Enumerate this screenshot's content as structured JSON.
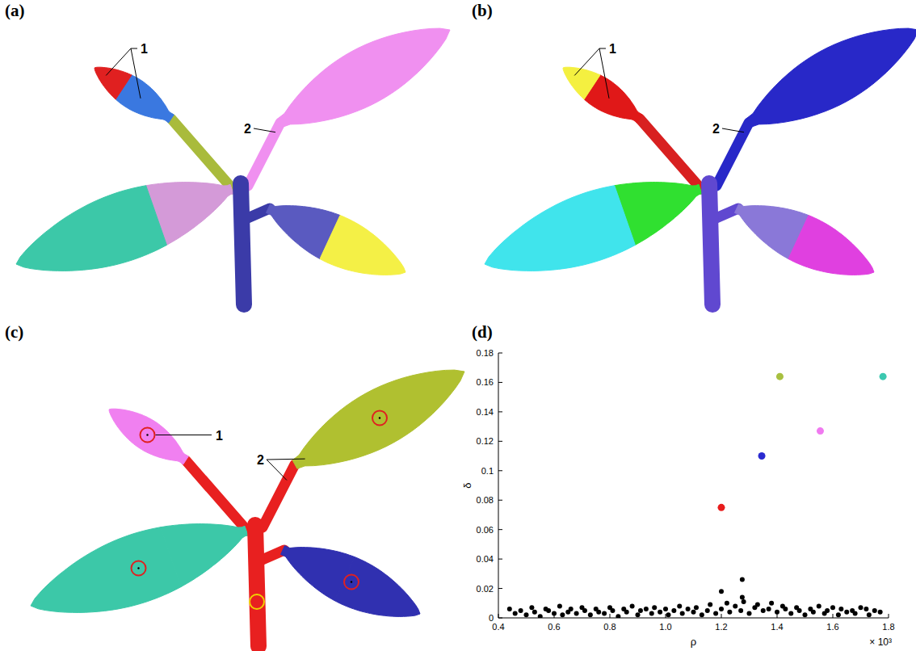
{
  "panels": [
    {
      "letter": "(a)",
      "labels": [
        "1",
        "2"
      ],
      "parts": {
        "stem": "#3b3ba8",
        "tl_pet": "#a9bb3c",
        "tl_base": "#3a78e0",
        "tl_tip": "#e02020",
        "tr_pet": "#f090f0",
        "tr_blade": "#f090f0",
        "l_base": "#d49ad8",
        "l_tip": "#3cc8a8",
        "r_pet": "#3b3ba8",
        "r_base": "#5a5ac0",
        "r_tip": "#f4f046"
      }
    },
    {
      "letter": "(b)",
      "labels": [
        "1",
        "2"
      ],
      "parts": {
        "stem": "#6048d0",
        "tl_pet": "#d82020",
        "tl_base": "#e01818",
        "tl_tip": "#f4f040",
        "tr_pet": "#2828c8",
        "tr_blade": "#2828c8",
        "l_base": "#30e030",
        "l_tip": "#40e4ec",
        "r_pet": "#6048d0",
        "r_base": "#8a78d8",
        "r_tip": "#e040e0"
      }
    },
    {
      "letter": "(c)",
      "labels": [
        "1",
        "2"
      ],
      "parts": {
        "stem": "#e82020",
        "tl_pet": "#e82020",
        "tl_base": "#f080f0",
        "tl_tip": "#f080f0",
        "tr_pet": "#e82020",
        "tr_blade": "#b0c030",
        "l_base": "#3cc8a8",
        "l_tip": "#3cc8a8",
        "r_pet": "#e82020",
        "r_base": "#3030b0",
        "r_tip": "#3030b0"
      }
    },
    {
      "letter": "(d)"
    }
  ],
  "chart_data": {
    "type": "scatter",
    "x_label": "ρ",
    "y_label": "δ",
    "x_multiplier": "× 10³",
    "xlim": [
      0.4,
      1.8
    ],
    "xticks": [
      0.4,
      0.6,
      0.8,
      {
        "value": 1,
        "label": "1.0"
      },
      1.2,
      1.4,
      1.6,
      1.8
    ],
    "ylim": [
      0,
      0.18
    ],
    "yticks": [
      0,
      0.02,
      0.04,
      0.06,
      0.08,
      0.1,
      0.12,
      0.14,
      0.16,
      0.18
    ],
    "series": [
      {
        "color": "#000000",
        "x": [
          0.44,
          0.46,
          0.48,
          0.5,
          0.52,
          0.53,
          0.55,
          0.57,
          0.58,
          0.6,
          0.62,
          0.63,
          0.65,
          0.66,
          0.68,
          0.7,
          0.71,
          0.73,
          0.75,
          0.76,
          0.78,
          0.8,
          0.81,
          0.83,
          0.85,
          0.86,
          0.88,
          0.9,
          0.91,
          0.93,
          0.95,
          0.96,
          0.98,
          1.0,
          1.01,
          1.03,
          1.05,
          1.06,
          1.08,
          1.1,
          1.11,
          1.13,
          1.15,
          1.16,
          1.18,
          1.2,
          1.22,
          1.23,
          1.25,
          1.27,
          1.28,
          1.3,
          1.32,
          1.33,
          1.35,
          1.37,
          1.38,
          1.4,
          1.42,
          1.43,
          1.45,
          1.47,
          1.48,
          1.5,
          1.52,
          1.53,
          1.55,
          1.57,
          1.58,
          1.6,
          1.62,
          1.63,
          1.65,
          1.67,
          1.68,
          1.7,
          1.72,
          1.73,
          1.75,
          1.77,
          1.2,
          1.275,
          1.275
        ],
        "values": [
          0.006,
          0.003,
          0.005,
          0.002,
          0.007,
          0.004,
          0.001,
          0.006,
          0.005,
          0.003,
          0.008,
          0.002,
          0.004,
          0.006,
          0.003,
          0.007,
          0.005,
          0.002,
          0.006,
          0.004,
          0.003,
          0.007,
          0.005,
          0.001,
          0.006,
          0.004,
          0.008,
          0.002,
          0.005,
          0.006,
          0.003,
          0.007,
          0.004,
          0.006,
          0.002,
          0.005,
          0.008,
          0.003,
          0.006,
          0.004,
          0.007,
          0.002,
          0.005,
          0.009,
          0.003,
          0.006,
          0.01,
          0.004,
          0.008,
          0.005,
          0.011,
          0.003,
          0.007,
          0.009,
          0.005,
          0.006,
          0.01,
          0.004,
          0.008,
          0.006,
          0.003,
          0.007,
          0.005,
          0.002,
          0.006,
          0.004,
          0.008,
          0.003,
          0.005,
          0.007,
          0.002,
          0.006,
          0.004,
          0.005,
          0.003,
          0.007,
          0.006,
          0.002,
          0.005,
          0.004,
          0.018,
          0.026,
          0.014
        ]
      },
      {
        "colors": [
          "#e81c1c",
          "#2a2ad0",
          "#a8c040",
          "#f07af0",
          "#3cc8b0"
        ],
        "x": [
          1.2,
          1.345,
          1.41,
          1.555,
          1.78
        ],
        "values": [
          0.075,
          0.11,
          0.164,
          0.127,
          0.164
        ]
      }
    ]
  }
}
